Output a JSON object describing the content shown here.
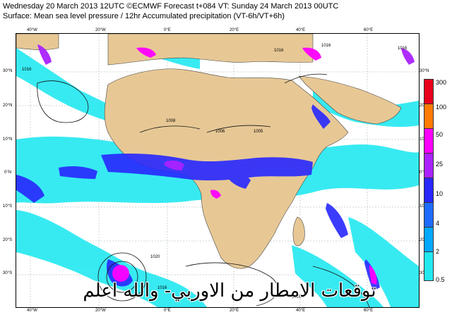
{
  "header": {
    "line1": "Wednesday 20 March 2013 12UTC ©ECMWF Forecast t+084 VT: Sunday 24 March 2013 00UTC",
    "line2": "Surface: Mean sea level pressure / 12hr Accumulated precipitation (VT-6h/VT+6h)"
  },
  "axes": {
    "top_lon": [
      "40°W",
      "20°W",
      "0°E",
      "20°E",
      "40°E",
      "60°E"
    ],
    "bottom_lon": [
      "40°W",
      "20°W",
      "0°E",
      "20°E",
      "40°E",
      "60°E"
    ],
    "left_lat": [
      "30°N",
      "20°N",
      "10°N",
      "0°N",
      "10°S",
      "20°S",
      "30°S"
    ],
    "right_lat": [
      "30°N",
      "20°N",
      "10°N",
      "0°N",
      "10°S",
      "20°S",
      "30°S"
    ]
  },
  "isobars": [
    "1016",
    "1008",
    "1006",
    "1005",
    "1016",
    "1016",
    "1020",
    "1016",
    "1016",
    "1016"
  ],
  "legend": {
    "levels": [
      {
        "label": "300",
        "color": "#e8001c"
      },
      {
        "label": "100",
        "color": "#ff7a00"
      },
      {
        "label": "50",
        "color": "#ff00ff"
      },
      {
        "label": "25",
        "color": "#aa22ff"
      },
      {
        "label": "10",
        "color": "#2828ff"
      },
      {
        "label": "4",
        "color": "#1e6cff"
      },
      {
        "label": "2",
        "color": "#00a8ff"
      },
      {
        "label": "0.5",
        "color": "#22e8f0"
      }
    ]
  },
  "colors": {
    "land": "#e7c895",
    "ocean": "#ffffff",
    "light_precip": "#22e8f0"
  },
  "overlay_text": "توقعات الامطار من الاوربي- والله اعلم"
}
